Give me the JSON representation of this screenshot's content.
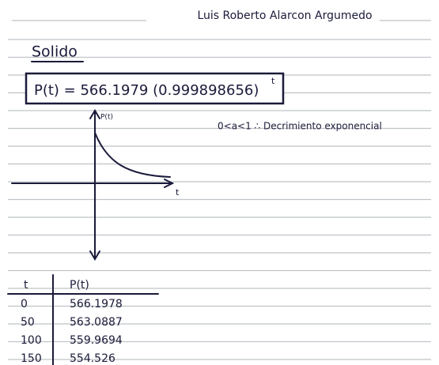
{
  "header": {
    "author": "Luis Roberto Alarcon Argumedo"
  },
  "heading": "Solido",
  "formula": {
    "main": "P(t) = 566.1979 (0.999898656)",
    "exponent": "t"
  },
  "graph": {
    "y_label": "P(t)",
    "x_label": "t"
  },
  "note": "0<a<1 ∴ Decrimiento exponencial",
  "table": {
    "headers": [
      "t",
      "P(t)"
    ],
    "rows": [
      [
        "0",
        "566.1978"
      ],
      [
        "50",
        "563.0887"
      ],
      [
        "100",
        "559.9694"
      ],
      [
        "150",
        "554.526"
      ]
    ]
  }
}
